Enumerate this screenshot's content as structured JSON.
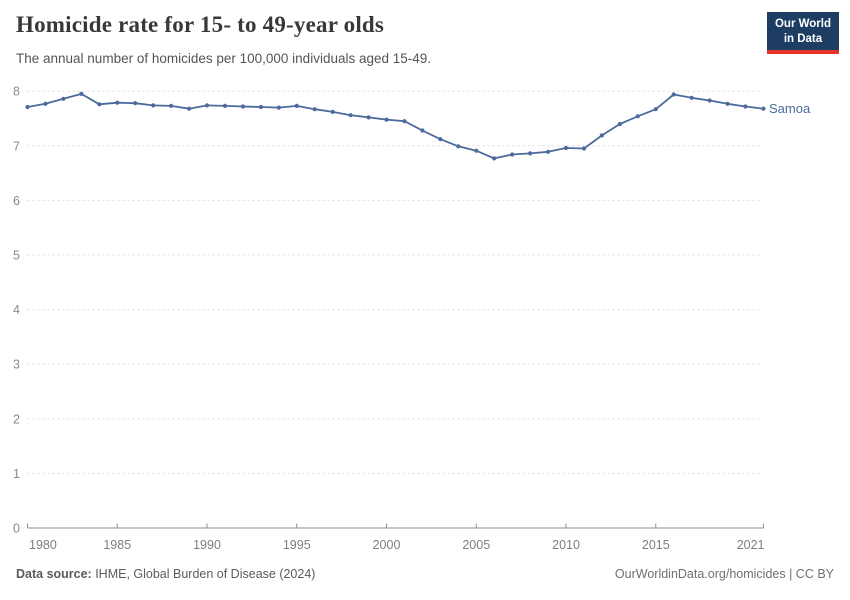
{
  "header": {
    "title": "Homicide rate for 15- to 49-year olds",
    "subtitle": "The annual number of homicides per 100,000 individuals aged 15-49.",
    "logo": {
      "line1": "Our World",
      "line2": "in Data",
      "bg": "#1d3d63",
      "stripe": "#e5332d"
    }
  },
  "footer": {
    "source_label": "Data source:",
    "source_text": " IHME, Global Burden of Disease (2024)",
    "credit": "OurWorldinData.org/homicides | CC BY"
  },
  "chart_data": {
    "type": "line",
    "title": "Homicide rate for 15- to 49-year olds",
    "subtitle": "The annual number of homicides per 100,000 individuals aged 15-49.",
    "xlabel": "",
    "ylabel": "",
    "xlim": [
      1980,
      2021
    ],
    "ylim": [
      0,
      8
    ],
    "grid": true,
    "grid_color": "#dcdcdc",
    "axis_color": "#8f8f8f",
    "tick_label_color": "#7e7e7e",
    "x_ticks": [
      1980,
      1985,
      1990,
      1995,
      2000,
      2005,
      2010,
      2015,
      2021
    ],
    "y_ticks": [
      0,
      1,
      2,
      3,
      4,
      5,
      6,
      7,
      8
    ],
    "legend_position": "end-label",
    "series": [
      {
        "name": "Samoa",
        "color": "#4c6a9c",
        "x": [
          1980,
          1981,
          1982,
          1983,
          1984,
          1985,
          1986,
          1987,
          1988,
          1989,
          1990,
          1991,
          1992,
          1993,
          1994,
          1995,
          1996,
          1997,
          1998,
          1999,
          2000,
          2001,
          2002,
          2003,
          2004,
          2005,
          2006,
          2007,
          2008,
          2009,
          2010,
          2011,
          2012,
          2013,
          2014,
          2015,
          2016,
          2017,
          2018,
          2019,
          2020,
          2021
        ],
        "values": [
          7.71,
          7.77,
          7.86,
          7.95,
          7.76,
          7.79,
          7.78,
          7.74,
          7.73,
          7.68,
          7.74,
          7.73,
          7.72,
          7.71,
          7.7,
          7.73,
          7.67,
          7.62,
          7.56,
          7.52,
          7.48,
          7.45,
          7.28,
          7.12,
          6.99,
          6.91,
          6.77,
          6.84,
          6.86,
          6.89,
          6.96,
          6.95,
          7.19,
          7.4,
          7.54,
          7.67,
          7.94,
          7.88,
          7.83,
          7.77,
          7.72,
          7.68
        ]
      }
    ]
  }
}
